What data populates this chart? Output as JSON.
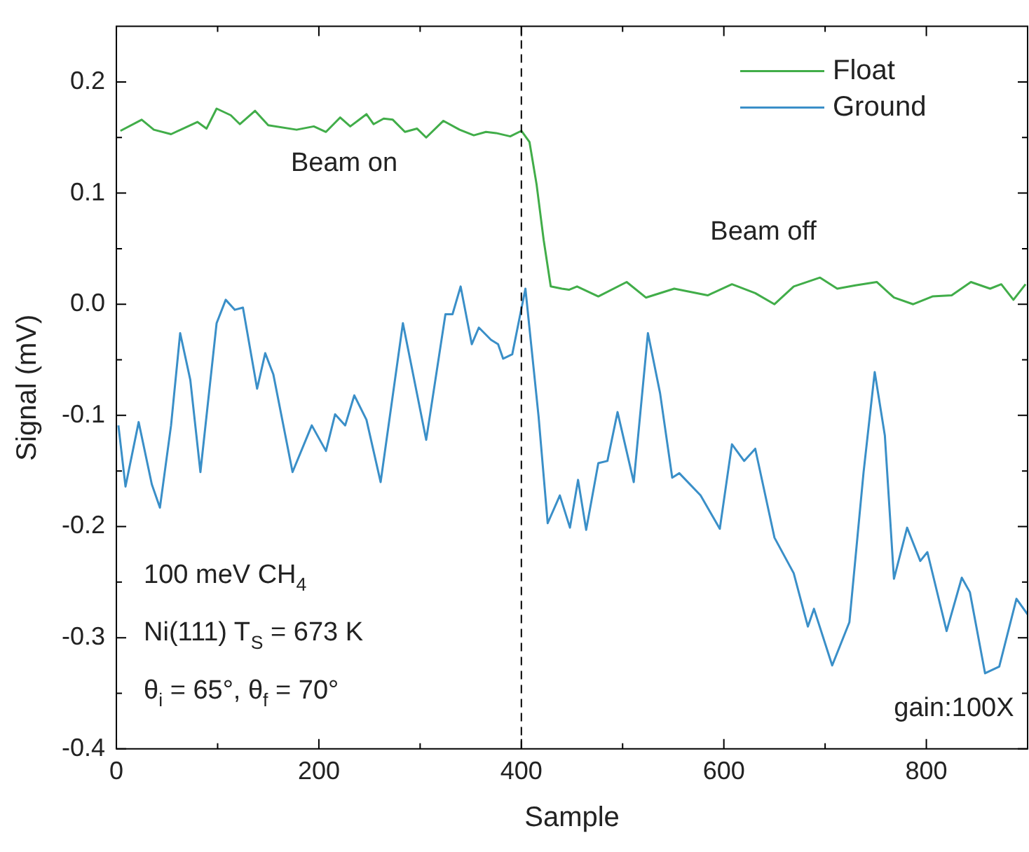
{
  "chart_data": {
    "type": "line",
    "xlabel": "Sample",
    "ylabel": "Signal (mV)",
    "xlim": [
      0,
      900
    ],
    "ylim": [
      -0.4,
      0.25
    ],
    "xticks": [
      0,
      {
        "value": 100,
        "label": null
      },
      200,
      {
        "value": 300,
        "label": null
      },
      400,
      {
        "value": 500,
        "label": null
      },
      600,
      {
        "value": 700,
        "label": null
      },
      800
    ],
    "yticks": [
      -0.4,
      {
        "value": -0.35,
        "label": null
      },
      -0.3,
      {
        "value": -0.25,
        "label": null
      },
      -0.2,
      {
        "value": -0.15,
        "label": null
      },
      -0.1,
      {
        "value": -0.05,
        "label": null
      },
      {
        "value": 0,
        "label": "0.0"
      },
      {
        "value": 0.05,
        "label": null
      },
      0.1,
      {
        "value": 0.15,
        "label": null
      },
      0.2
    ],
    "legend": "top right",
    "grid": false,
    "series": [
      {
        "name": "Float",
        "color": "#41ad49",
        "x": [
          4,
          25,
          37,
          54,
          80,
          89,
          99,
          113,
          122,
          137,
          150,
          178,
          195,
          207,
          221,
          231,
          247,
          254,
          264,
          273,
          285,
          297,
          306,
          323,
          339,
          353,
          365,
          375,
          389,
          400,
          408,
          415,
          422,
          429,
          440,
          447,
          455,
          476,
          504,
          523,
          551,
          584,
          608,
          631,
          650,
          669,
          695,
          712,
          730,
          751,
          768,
          787,
          806,
          825,
          844,
          863,
          874,
          886,
          898
        ],
        "values": [
          0.156,
          0.166,
          0.157,
          0.153,
          0.164,
          0.158,
          0.176,
          0.17,
          0.162,
          0.174,
          0.161,
          0.157,
          0.16,
          0.155,
          0.168,
          0.16,
          0.171,
          0.162,
          0.167,
          0.166,
          0.155,
          0.158,
          0.15,
          0.165,
          0.157,
          0.152,
          0.155,
          0.154,
          0.151,
          0.156,
          0.146,
          0.108,
          0.058,
          0.016,
          0.014,
          0.013,
          0.016,
          0.007,
          0.02,
          0.006,
          0.014,
          0.008,
          0.018,
          0.01,
          0.0,
          0.016,
          0.024,
          0.014,
          0.017,
          0.02,
          0.006,
          0.0,
          0.007,
          0.008,
          0.02,
          0.014,
          0.018,
          0.004,
          0.018
        ]
      },
      {
        "name": "Ground",
        "color": "#3a8fc8",
        "x": [
          2,
          9,
          22,
          35,
          43,
          54,
          63,
          73,
          83,
          99,
          108,
          117,
          125,
          139,
          147,
          155,
          174,
          193,
          207,
          216,
          226,
          235,
          247,
          261,
          283,
          306,
          325,
          332,
          340,
          351,
          358,
          370,
          377,
          382,
          391,
          404,
          417,
          426,
          438,
          448,
          456,
          464,
          476,
          485,
          495,
          511,
          525,
          537,
          549,
          556,
          577,
          596,
          608,
          620,
          631,
          650,
          669,
          683,
          689,
          707,
          724,
          738,
          749,
          759,
          768,
          781,
          794,
          801,
          820,
          835,
          843,
          858,
          872,
          889,
          900
        ],
        "values": [
          -0.109,
          -0.164,
          -0.106,
          -0.162,
          -0.183,
          -0.109,
          -0.026,
          -0.068,
          -0.151,
          -0.017,
          0.004,
          -0.005,
          -0.003,
          -0.076,
          -0.044,
          -0.063,
          -0.151,
          -0.109,
          -0.132,
          -0.099,
          -0.109,
          -0.082,
          -0.104,
          -0.16,
          -0.017,
          -0.122,
          -0.009,
          -0.009,
          0.016,
          -0.036,
          -0.021,
          -0.032,
          -0.036,
          -0.049,
          -0.045,
          0.014,
          -0.101,
          -0.197,
          -0.172,
          -0.201,
          -0.158,
          -0.203,
          -0.143,
          -0.141,
          -0.097,
          -0.16,
          -0.026,
          -0.08,
          -0.156,
          -0.152,
          -0.172,
          -0.202,
          -0.126,
          -0.141,
          -0.13,
          -0.21,
          -0.242,
          -0.29,
          -0.274,
          -0.325,
          -0.286,
          -0.151,
          -0.061,
          -0.118,
          -0.247,
          -0.201,
          -0.231,
          -0.223,
          -0.294,
          -0.246,
          -0.259,
          -0.332,
          -0.326,
          -0.265,
          -0.279
        ]
      }
    ],
    "ref_lines": [
      {
        "axis": "x",
        "value": 400,
        "color": "#000000",
        "line_style": "dashed"
      }
    ],
    "annotations": [
      "Beam on",
      "Beam off",
      "100 meV CH$_{4}$",
      "Ni(111) T$_{S}$ = 673 K",
      "θ$_{i}$ = 65°, θ$_{f}$ = 70°",
      "gain:100X"
    ]
  }
}
